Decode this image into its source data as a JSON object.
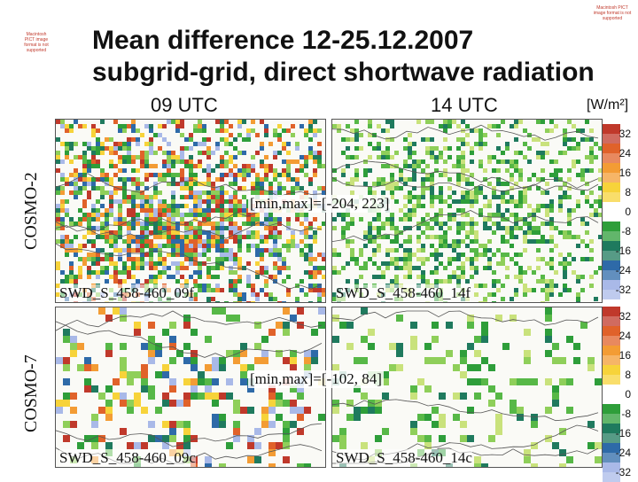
{
  "title": {
    "line1": "Mean difference 12-25.12.2007",
    "line2": "subgrid-grid, direct shortwave radiation"
  },
  "columns": [
    "09 UTC",
    "14 UTC"
  ],
  "rows": [
    "COSMO-2",
    "COSMO-7"
  ],
  "units": "[W/m²]",
  "panels": {
    "tl": "SWD_S_458-460_09f",
    "tr": "SWD_S_458-460_14f",
    "bl": "SWD_S_458-460_09c",
    "br": "SWD_S_458-460_14c"
  },
  "minmax": {
    "cosmo2": "[min,max]=[-204, 223]",
    "cosmo7": "[min,max]=[-102, 84]"
  },
  "legend": {
    "ticks": [
      "32",
      "24",
      "16",
      "8",
      "0",
      "-8",
      "-16",
      "-24",
      "-32"
    ],
    "colors": [
      "#c0392b",
      "#e0622a",
      "#f39c34",
      "#f7d33a",
      "#ffffff",
      "#2e9e3a",
      "#1f7a5e",
      "#2e6aa8",
      "#a9b9e8"
    ]
  },
  "placeholder": {
    "text": "Macintosh PICT image format is not supported"
  }
}
